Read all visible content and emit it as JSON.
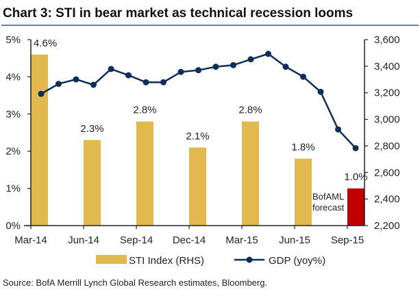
{
  "chart_data": {
    "type": "bar+line",
    "title": "Chart 3: STI in bear market as technical recession looms",
    "categories": [
      "Mar-14",
      "Jun-14",
      "Sep-14",
      "Dec-14",
      "Mar-15",
      "Jun-15",
      "Sep-15"
    ],
    "bars": {
      "legend": "STI Index (RHS)",
      "values": [
        4.6,
        2.3,
        2.8,
        2.1,
        2.8,
        1.8,
        1.0
      ],
      "labels": [
        "4.6%",
        "2.3%",
        "2.8%",
        "2.1%",
        "2.8%",
        "1.8%",
        "1.0%"
      ],
      "forecast": [
        false,
        false,
        false,
        false,
        false,
        false,
        true
      ],
      "color": "#E2B94F",
      "forecast_color": "#C00000"
    },
    "line": {
      "legend": "GDP (yoy%)",
      "values": [
        3192,
        3267,
        3301,
        3260,
        3379,
        3332,
        3279,
        3279,
        3357,
        3370,
        3396,
        3408,
        3452,
        3493,
        3396,
        3321,
        3207,
        2924,
        2783
      ],
      "color": "#0F2D5A"
    },
    "left_axis": {
      "ylim": [
        0,
        5
      ],
      "ticks": [
        "0%",
        "1%",
        "2%",
        "3%",
        "4%",
        "5%"
      ]
    },
    "right_axis": {
      "ylim": [
        2200,
        3600
      ],
      "ticks": [
        "2,200",
        "2,400",
        "2,600",
        "2,800",
        "3,000",
        "3,200",
        "3,400",
        "3,600"
      ]
    },
    "annotation": [
      "BofAML",
      "forecast"
    ],
    "legend_position": "bottom",
    "source": "Source: BofA Merrill Lynch Global Research estimates, Bloomberg."
  }
}
